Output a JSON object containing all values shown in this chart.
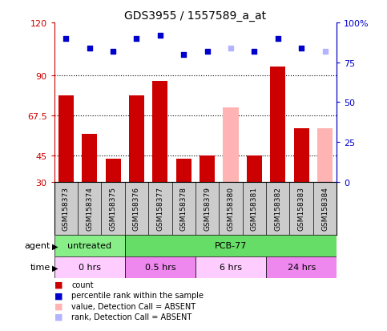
{
  "title": "GDS3955 / 1557589_a_at",
  "samples": [
    "GSM158373",
    "GSM158374",
    "GSM158375",
    "GSM158376",
    "GSM158377",
    "GSM158378",
    "GSM158379",
    "GSM158380",
    "GSM158381",
    "GSM158382",
    "GSM158383",
    "GSM158384"
  ],
  "count_values": [
    79,
    57,
    43,
    79,
    87,
    43,
    45,
    null,
    45,
    95,
    60,
    null
  ],
  "count_absent": [
    null,
    null,
    null,
    null,
    null,
    null,
    null,
    72,
    null,
    null,
    null,
    60
  ],
  "rank_values": [
    90,
    84,
    82,
    90,
    92,
    80,
    82,
    null,
    82,
    90,
    84,
    null
  ],
  "rank_absent": [
    null,
    null,
    null,
    null,
    null,
    null,
    null,
    84,
    null,
    null,
    null,
    82
  ],
  "ylim_left": [
    30,
    120
  ],
  "ylim_right": [
    0,
    100
  ],
  "yticks_left": [
    30,
    45,
    67.5,
    90,
    120
  ],
  "yticks_right": [
    0,
    25,
    50,
    75,
    100
  ],
  "ytick_labels_left": [
    "30",
    "45",
    "67.5",
    "90",
    "120"
  ],
  "ytick_labels_right": [
    "0",
    "25",
    "50",
    "75",
    "100%"
  ],
  "hlines": [
    45,
    67.5,
    90
  ],
  "bar_color": "#cc0000",
  "bar_absent_color": "#ffb3b3",
  "rank_color": "#0000cc",
  "rank_absent_color": "#b3b3ff",
  "agent_groups": [
    {
      "label": "untreated",
      "start": 0,
      "end": 3,
      "color": "#88ee88"
    },
    {
      "label": "PCB-77",
      "start": 3,
      "end": 12,
      "color": "#66dd66"
    }
  ],
  "time_groups": [
    {
      "label": "0 hrs",
      "start": 0,
      "end": 3,
      "color": "#ffccff"
    },
    {
      "label": "0.5 hrs",
      "start": 3,
      "end": 6,
      "color": "#ee88ee"
    },
    {
      "label": "6 hrs",
      "start": 6,
      "end": 9,
      "color": "#ffccff"
    },
    {
      "label": "24 hrs",
      "start": 9,
      "end": 12,
      "color": "#ee88ee"
    }
  ],
  "legend_items": [
    {
      "label": "count",
      "color": "#cc0000"
    },
    {
      "label": "percentile rank within the sample",
      "color": "#0000cc"
    },
    {
      "label": "value, Detection Call = ABSENT",
      "color": "#ffb3b3"
    },
    {
      "label": "rank, Detection Call = ABSENT",
      "color": "#b3b3ff"
    }
  ],
  "axis_label_color_left": "#cc0000",
  "axis_label_color_right": "#0000cc",
  "sample_box_color": "#cccccc",
  "grid_color": "#000000"
}
